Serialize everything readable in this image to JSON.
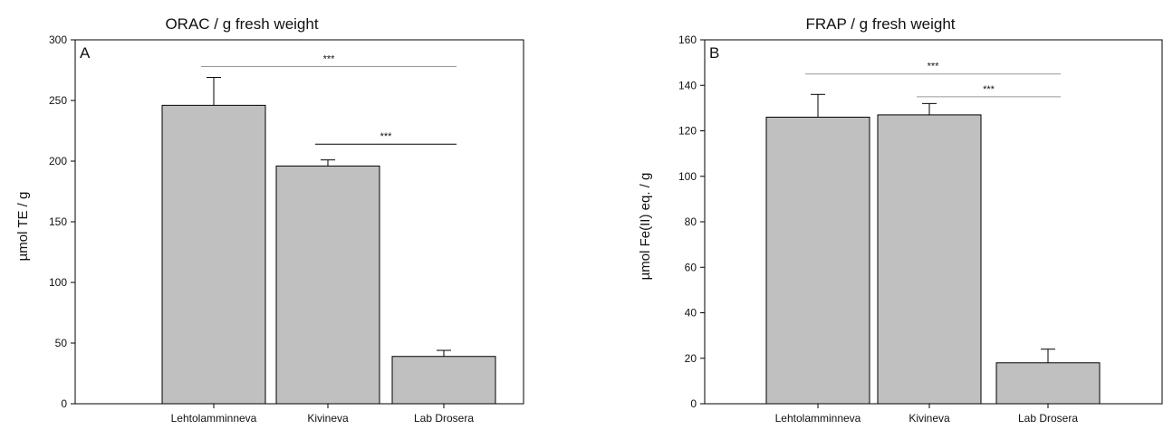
{
  "chart_data": [
    {
      "type": "bar",
      "panel": "A",
      "title": "ORAC / g fresh weight",
      "xlabel": "",
      "ylabel": "µmol TE / g",
      "categories": [
        "Lehtolamminneva",
        "Kivineva",
        "Lab Drosera"
      ],
      "values": [
        246,
        196,
        39
      ],
      "errors": [
        23,
        5,
        5
      ],
      "ylim": [
        0,
        300
      ],
      "yticks": [
        0,
        50,
        100,
        150,
        200,
        250,
        300
      ],
      "grid": false,
      "legend": "none",
      "bar_color": "#c0c0c0",
      "significance": [
        {
          "from": 0,
          "to": 2,
          "label": "***",
          "y": 278,
          "color": "#999999"
        },
        {
          "from": 1,
          "to": 2,
          "label": "***",
          "y": 214,
          "color": "#000000"
        }
      ]
    },
    {
      "type": "bar",
      "panel": "B",
      "title": "FRAP / g fresh weight",
      "xlabel": "",
      "ylabel": "µmol Fe(II) eq. / g",
      "categories": [
        "Lehtolamminneva",
        "Kivineva",
        "Lab Drosera"
      ],
      "values": [
        126,
        127,
        18
      ],
      "errors": [
        10,
        5,
        6
      ],
      "ylim": [
        0,
        160
      ],
      "yticks": [
        0,
        20,
        40,
        60,
        80,
        100,
        120,
        140,
        160
      ],
      "grid": false,
      "legend": "none",
      "bar_color": "#c0c0c0",
      "significance": [
        {
          "from": 0,
          "to": 2,
          "label": "***",
          "y": 145,
          "color": "#999999"
        },
        {
          "from": 1,
          "to": 2,
          "label": "***",
          "y": 135,
          "color": "#999999"
        }
      ]
    }
  ]
}
